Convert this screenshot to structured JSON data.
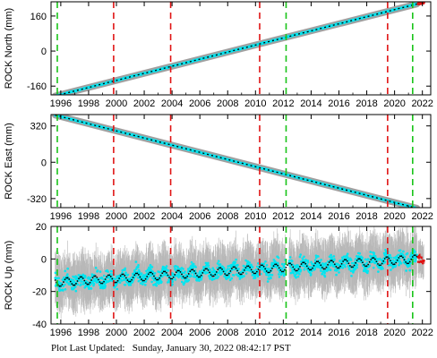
{
  "chart_data": [
    {
      "type": "scatter",
      "title": "",
      "xlabel": "",
      "ylabel": "ROCK North (mm)",
      "xlim": [
        1995.3,
        2022.6
      ],
      "ylim": [
        -200,
        225
      ],
      "x_ticks": [
        1996,
        1998,
        2000,
        2002,
        2004,
        2006,
        2008,
        2010,
        2012,
        2014,
        2016,
        2018,
        2020,
        2022
      ],
      "y_ticks": [
        -160,
        0,
        160
      ],
      "series": [
        {
          "x": [
            1995.6,
            2021.6
          ],
          "y": [
            -205,
            215
          ],
          "color": "#00e5f0"
        },
        {
          "x": [
            1995.6,
            2021.6
          ],
          "y": [
            -205,
            215
          ],
          "color": "#000000"
        },
        {
          "x": [
            2021.7,
            2022.1
          ],
          "y": [
            216,
            221
          ],
          "color": "#e01010"
        }
      ],
      "vlines_green": [
        1995.75,
        2012.2,
        2021.3
      ],
      "vlines_red": [
        1999.8,
        2003.9,
        2010.3,
        2019.5
      ]
    },
    {
      "type": "scatter",
      "title": "",
      "xlabel": "",
      "ylabel": "ROCK East (mm)",
      "xlim": [
        1995.3,
        2022.6
      ],
      "ylim": [
        -400,
        420
      ],
      "x_ticks": [
        1996,
        1998,
        2000,
        2002,
        2004,
        2006,
        2008,
        2010,
        2012,
        2014,
        2016,
        2018,
        2020,
        2022
      ],
      "y_ticks": [
        -320,
        0,
        320
      ],
      "series": [
        {
          "x": [
            1995.6,
            2021.6
          ],
          "y": [
            415,
            -405
          ],
          "color": "#00e5f0"
        },
        {
          "x": [
            1995.6,
            2021.6
          ],
          "y": [
            415,
            -405
          ],
          "color": "#000000"
        },
        {
          "x": [
            2021.7,
            2022.1
          ],
          "y": [
            -408,
            -418
          ],
          "color": "#e01010"
        }
      ],
      "vlines_green": [
        1995.75,
        2012.2,
        2021.3
      ],
      "vlines_red": [
        1999.8,
        2003.9,
        2010.3,
        2019.5
      ]
    },
    {
      "type": "scatter",
      "title": "",
      "xlabel": "",
      "ylabel": "ROCK Up (mm)",
      "xlim": [
        1995.3,
        2022.6
      ],
      "ylim": [
        -40,
        20
      ],
      "x_ticks": [
        1996,
        1998,
        2000,
        2002,
        2004,
        2006,
        2008,
        2010,
        2012,
        2014,
        2016,
        2018,
        2020,
        2022
      ],
      "y_ticks": [
        -40,
        -20,
        0,
        20
      ],
      "trend": {
        "x": [
          1995.6,
          2021.6
        ],
        "y": [
          -14.5,
          0
        ],
        "seasonal_amplitude": 2.5
      },
      "scatter_spread": 8,
      "error_spread": 14,
      "colors": {
        "points": "#00e5f0",
        "errors": "#b8b8b8",
        "trend": "#000000",
        "recent": "#e01010"
      },
      "vlines_green": [
        1995.75,
        2012.2,
        2021.3
      ],
      "vlines_red": [
        1999.8,
        2003.9,
        2010.3,
        2019.5
      ]
    }
  ],
  "footer": {
    "label": "Plot Last Updated:",
    "timestamp": "Sunday, January 30, 2022 08:42:17 PST"
  }
}
